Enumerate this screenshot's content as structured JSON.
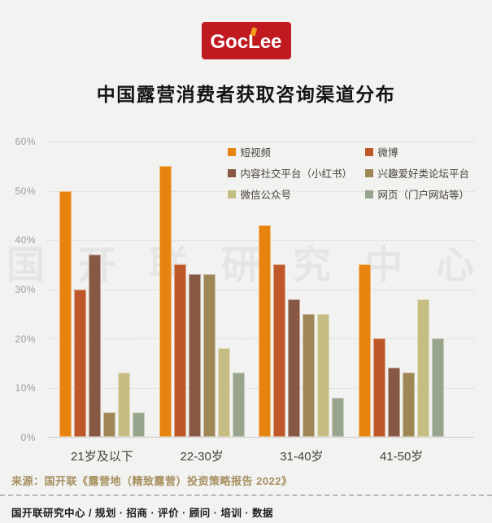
{
  "page": {
    "background": "#f2f2f1"
  },
  "logo": {
    "text": "GocLee",
    "bg_color": "#c01a20",
    "text_color": "#ffffff",
    "accent_color": "#f29b1d"
  },
  "title": "中国露营消费者获取咨询渠道分布",
  "watermark": "国 开 联 研 究 中 心",
  "chart_data": {
    "type": "bar",
    "categories": [
      "21岁及以下",
      "22-30岁",
      "31-40岁",
      "41-50岁"
    ],
    "series": [
      {
        "name": "短视频",
        "color": "#e7830f",
        "values": [
          50,
          55,
          43,
          35
        ]
      },
      {
        "name": "微博",
        "color": "#bf5829",
        "values": [
          30,
          35,
          35,
          20
        ]
      },
      {
        "name": "内容社交平台（小红书）",
        "color": "#875844",
        "values": [
          37,
          33,
          28,
          14
        ]
      },
      {
        "name": "兴趣爱好类论坛平台",
        "color": "#9e8657",
        "values": [
          5,
          33,
          25,
          13
        ]
      },
      {
        "name": "微信公众号",
        "color": "#c6bd83",
        "values": [
          13,
          18,
          25,
          28
        ]
      },
      {
        "name": "网页（门户网站等）",
        "color": "#98a48c",
        "values": [
          5,
          13,
          8,
          20
        ]
      }
    ],
    "ylim": [
      0,
      60
    ],
    "ytick_step": 10,
    "yticks": [
      "0%",
      "10%",
      "20%",
      "30%",
      "40%",
      "50%",
      "60%"
    ],
    "grid": "horizontal-dashed",
    "legend_position": "top-right",
    "gridline_color": "#d9d9d5",
    "tick_label_color": "#9b9b99",
    "category_label_color": "#47423c"
  },
  "footer": {
    "source": "来源：国开联《露营地（精致露营）投资策略报告 2022》",
    "org_line": "国开联研究中心  /  规划 · 招商 · 评价 · 顾问 · 培训 · 数据"
  }
}
